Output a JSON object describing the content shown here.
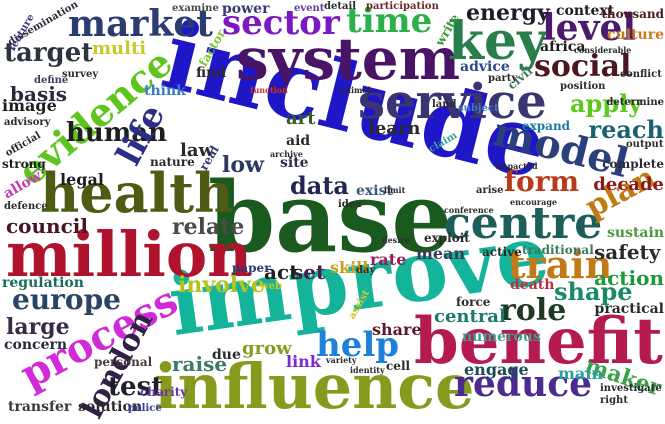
{
  "words": [
    {
      "text": "include",
      "color": "#1f16c8",
      "rot": 14
    },
    {
      "text": "base",
      "color": "#1b5a1e",
      "rot": 0
    },
    {
      "text": "improve",
      "color": "#14b49a",
      "rot": -8
    },
    {
      "text": "system",
      "color": "#4a1466",
      "rot": 0
    },
    {
      "text": "million",
      "color": "#b0132e",
      "rot": 0
    },
    {
      "text": "health",
      "color": "#4d5c12",
      "rot": 0
    },
    {
      "text": "influence",
      "color": "#889a1e",
      "rot": 0
    },
    {
      "text": "benefit",
      "color": "#b51b50",
      "rot": 0
    },
    {
      "text": "evidence",
      "color": "#5fc41c",
      "rot": -40
    },
    {
      "text": "service",
      "color": "#3a3470",
      "rot": 0
    },
    {
      "text": "process",
      "color": "#d22ad9",
      "rot": -28
    },
    {
      "text": "key",
      "color": "#2a7e4a",
      "rot": 0
    },
    {
      "text": "centre",
      "color": "#1d5e5a",
      "rot": 0
    },
    {
      "text": "model",
      "color": "#2a3f7c",
      "rot": 14
    },
    {
      "text": "market",
      "color": "#2a3c70",
      "rot": 0
    },
    {
      "text": "sector",
      "color": "#7a19c4",
      "rot": 0
    },
    {
      "text": "time",
      "color": "#2bb04a",
      "rot": 0
    },
    {
      "text": "level",
      "color": "#4a1a6e",
      "rot": 0
    },
    {
      "text": "social",
      "color": "#4a1822",
      "rot": 0
    },
    {
      "text": "target",
      "color": "#2c3440",
      "rot": 0
    },
    {
      "text": "train",
      "color": "#c27a18",
      "rot": 0
    },
    {
      "text": "reduce",
      "color": "#4d2a90",
      "rot": 0
    },
    {
      "text": "london",
      "color": "#332048",
      "rot": -62
    },
    {
      "text": "help",
      "color": "#1e80d8",
      "rot": 0
    },
    {
      "text": "role",
      "color": "#1e3a24",
      "rot": 0
    },
    {
      "text": "form",
      "color": "#b83a18",
      "rot": 0
    },
    {
      "text": "data",
      "color": "#252554",
      "rot": 0
    },
    {
      "text": "human",
      "color": "#1e1e1e",
      "rot": 0
    },
    {
      "text": "life",
      "color": "#2a2e86",
      "rot": -62
    },
    {
      "text": "europe",
      "color": "#2a4466",
      "rot": 0
    },
    {
      "text": "council",
      "color": "#4a1422",
      "rot": 0
    },
    {
      "text": "apply",
      "color": "#5cc81e",
      "rot": 0
    },
    {
      "text": "reach",
      "color": "#1a6070",
      "rot": 0
    },
    {
      "text": "plan",
      "color": "#c07a14",
      "rot": -28
    },
    {
      "text": "shape",
      "color": "#1a8a64",
      "rot": 0
    },
    {
      "text": "large",
      "color": "#3a2a48",
      "rot": 0
    },
    {
      "text": "test",
      "color": "#1e1e28",
      "rot": 0
    },
    {
      "text": "energy",
      "color": "#1e1e28",
      "rot": 0
    },
    {
      "text": "relate",
      "color": "#4a4a4a",
      "rot": 0
    },
    {
      "text": "involve",
      "color": "#b2c41c",
      "rot": 0
    },
    {
      "text": "central",
      "color": "#1a7a6e",
      "rot": 0
    },
    {
      "text": "maker",
      "color": "#3aa04a",
      "rot": 18
    },
    {
      "text": "safety",
      "color": "#2a2a2a",
      "rot": 0
    },
    {
      "text": "action",
      "color": "#1a9a3a",
      "rot": 0
    },
    {
      "text": "decade",
      "color": "#8a1a1a",
      "rot": 0
    },
    {
      "text": "set",
      "color": "#4a1a4a",
      "rot": 0
    },
    {
      "text": "act",
      "color": "#1e1e1e",
      "rot": 0
    },
    {
      "text": "low",
      "color": "#2a3a5e",
      "rot": 0
    },
    {
      "text": "law",
      "color": "#2a2a2a",
      "rot": 0
    },
    {
      "text": "legal",
      "color": "#1e1e1e",
      "rot": 0
    },
    {
      "text": "art",
      "color": "#3a5a2a",
      "rot": 0
    },
    {
      "text": "learn",
      "color": "#2a2a2a",
      "rot": 0
    },
    {
      "text": "raise",
      "color": "#3a7a6a",
      "rot": 0
    },
    {
      "text": "grow",
      "color": "#8a9a1e",
      "rot": 0
    },
    {
      "text": "engage",
      "color": "#1a4a5a",
      "rot": 0
    },
    {
      "text": "main",
      "color": "#2aa09a",
      "rot": 0
    },
    {
      "text": "share",
      "color": "#5a1a2a",
      "rot": 0
    },
    {
      "text": "mean",
      "color": "#3a3a5a",
      "rot": 0
    },
    {
      "text": "multi",
      "color": "#c8c82a",
      "rot": 0
    },
    {
      "text": "basis",
      "color": "#2a2a3a",
      "rot": 0
    },
    {
      "text": "image",
      "color": "#1e1e1e",
      "rot": 0
    },
    {
      "text": "power",
      "color": "#3a3a7a",
      "rot": 0
    },
    {
      "text": "context",
      "color": "#1e1e1e",
      "rot": 0
    },
    {
      "text": "advice",
      "color": "#2a4a8a",
      "rot": 0
    },
    {
      "text": "culture",
      "color": "#c87a1a",
      "rot": 0
    },
    {
      "text": "skill",
      "color": "#c8a01a",
      "rot": 0
    },
    {
      "text": "rate",
      "color": "#9a1a5a",
      "rot": 0
    },
    {
      "text": "concern",
      "color": "#2a2a3a",
      "rot": 0
    },
    {
      "text": "regulation",
      "color": "#1a6a5a",
      "rot": 0
    },
    {
      "text": "transfer",
      "color": "#3a3a3a",
      "rot": 0
    },
    {
      "text": "solution",
      "color": "#2a2a2a",
      "rot": 0
    },
    {
      "text": "personal",
      "color": "#4a3a3a",
      "rot": 0
    },
    {
      "text": "due",
      "color": "#2a2a2a",
      "rot": 0
    },
    {
      "text": "link",
      "color": "#7a2ad0",
      "rot": 0
    },
    {
      "text": "death",
      "color": "#c0303a",
      "rot": 0
    },
    {
      "text": "practical",
      "color": "#2a2a2a",
      "rot": 0
    },
    {
      "text": "sustain",
      "color": "#4a9a3a",
      "rot": 0
    },
    {
      "text": "complete",
      "color": "#2a2a3a",
      "rot": 0
    },
    {
      "text": "numerous",
      "color": "#3aa08a",
      "rot": 0
    },
    {
      "text": "africa",
      "color": "#1e1e1e",
      "rot": 0
    },
    {
      "text": "expand",
      "color": "#1a7aa0",
      "rot": 0
    },
    {
      "text": "find",
      "color": "#2a2a2a",
      "rot": 0
    },
    {
      "text": "aid",
      "color": "#2a2a2a",
      "rot": 0
    },
    {
      "text": "site",
      "color": "#2a2a4a",
      "rot": 0
    },
    {
      "text": "exist",
      "color": "#3a5a7a",
      "rot": 0
    },
    {
      "text": "exploit",
      "color": "#2a2a2a",
      "rot": 0
    },
    {
      "text": "active",
      "color": "#2a2a2a",
      "rot": 0
    },
    {
      "text": "traditional",
      "color": "#3a7a5a",
      "rot": 0
    },
    {
      "text": "cell",
      "color": "#2a2a2a",
      "rot": 0
    },
    {
      "text": "charity",
      "color": "#6a3aa0",
      "rot": 0
    },
    {
      "text": "paper",
      "color": "#2a3a7a",
      "rot": 0
    },
    {
      "text": "nature",
      "color": "#2a2a2a",
      "rot": 0
    },
    {
      "text": "strong",
      "color": "#1e1e1e",
      "rot": 0
    },
    {
      "text": "official",
      "color": "#2a2a2a",
      "rot": -30
    },
    {
      "text": "allow",
      "color": "#c83ab0",
      "rot": -30
    },
    {
      "text": "defence",
      "color": "#2a2a2a",
      "rot": 0
    },
    {
      "text": "think",
      "color": "#3a7ac8",
      "rot": 0
    },
    {
      "text": "factor",
      "color": "#7ac83a",
      "rot": -60
    },
    {
      "text": "survey",
      "color": "#2a2a2a",
      "rot": 0
    },
    {
      "text": "define",
      "color": "#3a3a5a",
      "rot": 0
    },
    {
      "text": "advisory",
      "color": "#2a2a2a",
      "rot": 0
    },
    {
      "text": "thousand",
      "color": "#4a1a1a",
      "rot": 0
    },
    {
      "text": "examine",
      "color": "#4a4a4a",
      "rot": 0
    },
    {
      "text": "participation",
      "color": "#6a2a2a",
      "rot": 0
    },
    {
      "text": "event",
      "color": "#6a3aa0",
      "rot": 0
    },
    {
      "text": "detail",
      "color": "#2a2a2a",
      "rot": 0
    },
    {
      "text": "write",
      "color": "#3a9a3a",
      "rot": -60
    },
    {
      "text": "dissemination",
      "color": "#2a2a3a",
      "rot": -30
    },
    {
      "text": "feature",
      "color": "#3a3a7a",
      "rot": -60
    },
    {
      "text": "civil",
      "color": "#3a7a5a",
      "rot": -40
    },
    {
      "text": "party",
      "color": "#2a2a2a",
      "rot": 0
    },
    {
      "text": "position",
      "color": "#2a2a2a",
      "rot": 0
    },
    {
      "text": "conflict",
      "color": "#2a2a2a",
      "rot": 0
    },
    {
      "text": "determine",
      "color": "#2a2a2a",
      "rot": 0
    },
    {
      "text": "output",
      "color": "#2a2a2a",
      "rot": 0
    },
    {
      "text": "claim",
      "color": "#3aa0a0",
      "rot": -30
    },
    {
      "text": "arise",
      "color": "#2a2a2a",
      "rot": 0
    },
    {
      "text": "investigate",
      "color": "#2a2a2a",
      "rot": 0
    },
    {
      "text": "right",
      "color": "#2a2a2a",
      "rot": 0
    },
    {
      "text": "police",
      "color": "#3a3aa0",
      "rot": 0
    },
    {
      "text": "variety",
      "color": "#2a2a2a",
      "rot": 0
    },
    {
      "text": "identity",
      "color": "#2a2a2a",
      "rot": 0
    },
    {
      "text": "conference",
      "color": "#2a2a2a",
      "rot": 0
    },
    {
      "text": "encourage",
      "color": "#2a2a2a",
      "rot": 0
    },
    {
      "text": "impacted",
      "color": "#2a2a2a",
      "rot": 0
    },
    {
      "text": "archive",
      "color": "#2a2a2a",
      "rot": 0
    },
    {
      "text": "limit",
      "color": "#2a2a2a",
      "rot": 0
    },
    {
      "text": "idea",
      "color": "#2a2a2a",
      "rot": 0
    },
    {
      "text": "day",
      "color": "#2a2a2a",
      "rot": 0
    },
    {
      "text": "assist",
      "color": "#c8c82a",
      "rot": -60
    },
    {
      "text": "force",
      "color": "#2a2a2a",
      "rot": 0
    },
    {
      "text": "land",
      "color": "#2a2a2a",
      "rot": 0
    },
    {
      "text": "subject",
      "color": "#3a7ac8",
      "rot": 0
    },
    {
      "text": "function",
      "color": "#c8302a",
      "rot": 0
    },
    {
      "text": "animal",
      "color": "#2a2a2a",
      "rot": 0
    },
    {
      "text": "considerable",
      "color": "#2a2a2a",
      "rot": 0
    },
    {
      "text": "real",
      "color": "#3a3a7a",
      "rot": -60
    },
    {
      "text": "web",
      "color": "#c8c82a",
      "rot": 0
    },
    {
      "text": "desire",
      "color": "#2a2a2a",
      "rot": 0
    }
  ]
}
